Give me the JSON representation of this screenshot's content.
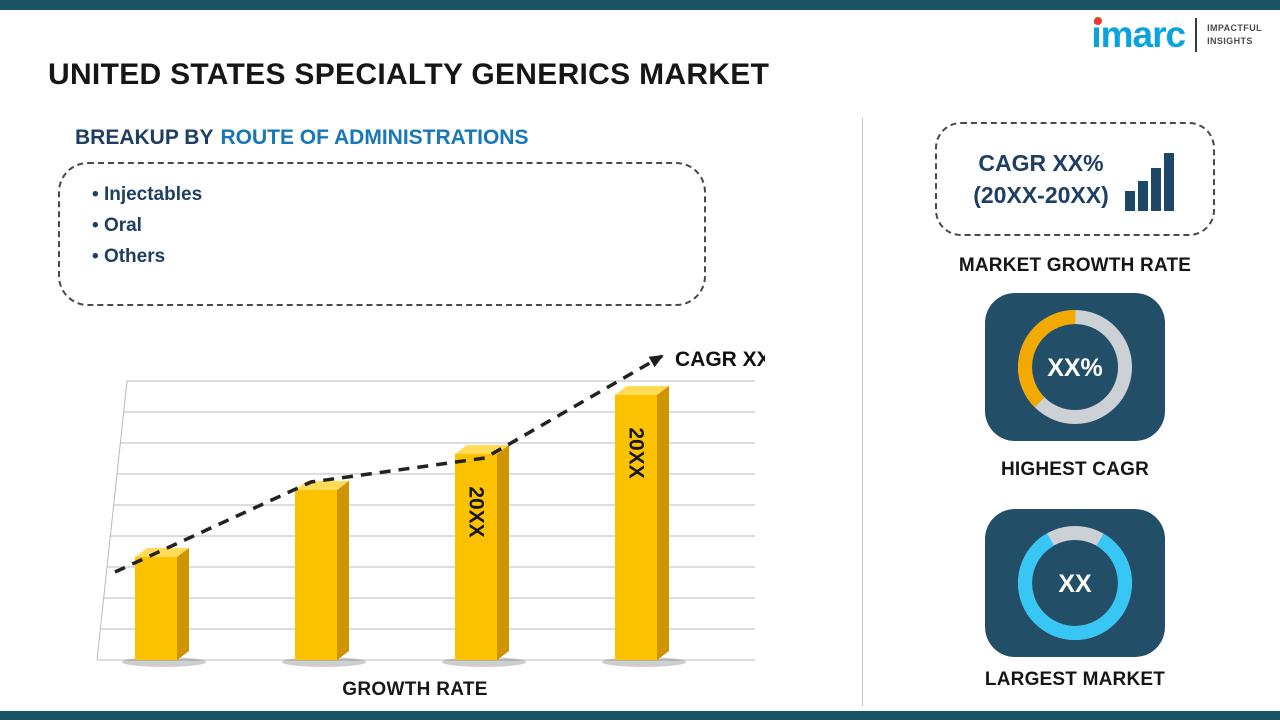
{
  "header": {
    "title": "UNITED STATES SPECIALTY GENERICS MARKET"
  },
  "logo": {
    "brand": "imarc",
    "tagline": [
      "IMPACTFUL",
      "INSIGHTS"
    ]
  },
  "breakup": {
    "label_prefix": "BREAKUP BY",
    "label_highlight": "ROUTE OF ADMINISTRATIONS",
    "items": [
      "Injectables",
      "Oral",
      "Others"
    ]
  },
  "chart_data": {
    "type": "bar",
    "title": "GROWTH RATE",
    "categories": [
      "",
      "",
      "",
      ""
    ],
    "values": [
      37,
      61,
      74,
      95
    ],
    "ylim": [
      0,
      100
    ],
    "bar_labels": [
      "",
      "",
      "20XX",
      "20XX"
    ],
    "trend_label": "CAGR XX%",
    "grid": true,
    "legend": false,
    "bar_color": "#fcc200",
    "note": "bar values estimated from pixel heights; axis shows unlabeled gridlines only"
  },
  "sidebar": {
    "cagr_card": {
      "line1": "CAGR XX%",
      "line2": "(20XX-20XX)"
    },
    "market_growth_rate_label": "MARKET GROWTH RATE",
    "highest_cagr_value": "XX%",
    "highest_cagr_label": "HIGHEST CAGR",
    "largest_market_value": "XX",
    "largest_market_label": "LARGEST MARKET"
  },
  "colors": {
    "band": "#1a5364",
    "navy_text": "#1f3e63",
    "highlight_blue": "#1878b6",
    "bar_gold": "#fcc200",
    "card_navy": "#234e68",
    "ring_orange": "#f2a900",
    "ring_cyan": "#38c6f4",
    "ring_gray": "#ccd1d5",
    "brand_blue": "#0aa2df",
    "brand_dot_red": "#ed3b2f"
  }
}
